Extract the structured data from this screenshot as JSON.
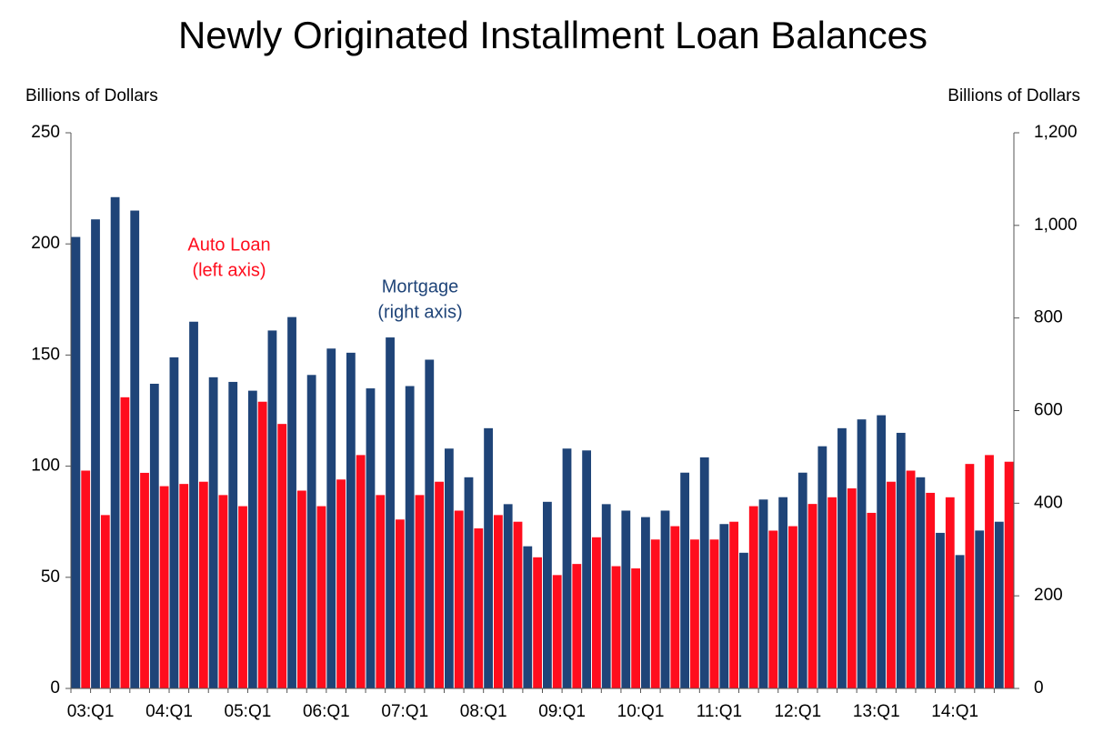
{
  "chart_data": {
    "type": "bar",
    "title": "Newly Originated Installment Loan Balances",
    "y_label": "Billions of Dollars",
    "y2_label": "Billions of Dollars",
    "categories": [
      "03:Q1",
      null,
      null,
      null,
      "04:Q1",
      null,
      null,
      null,
      "05:Q1",
      null,
      null,
      null,
      "06:Q1",
      null,
      null,
      null,
      "07:Q1",
      null,
      null,
      null,
      "08:Q1",
      null,
      null,
      null,
      "09:Q1",
      null,
      null,
      null,
      "10:Q1",
      null,
      null,
      null,
      "11:Q1",
      null,
      null,
      null,
      "12:Q1",
      null,
      null,
      null,
      "13:Q1",
      null,
      null,
      null,
      "14:Q1",
      null,
      null,
      null
    ],
    "series": [
      {
        "name": "Mortgage",
        "note": "(right axis)",
        "color": "#1f4478",
        "axis": "y2",
        "values": [
          975,
          1013,
          1061,
          1032,
          658,
          715,
          792,
          672,
          662,
          643,
          773,
          802,
          677,
          734,
          725,
          648,
          758,
          653,
          710,
          518,
          456,
          562,
          398,
          307,
          403,
          518,
          514,
          398,
          384,
          370,
          384,
          466,
          499,
          355,
          293,
          408,
          413,
          466,
          523,
          562,
          581,
          590,
          552,
          456,
          336,
          288,
          341,
          360
        ]
      },
      {
        "name": "Auto Loan",
        "note": "(left axis)",
        "color": "#ff0d1d",
        "axis": "y",
        "values": [
          98,
          78,
          131,
          97,
          91,
          92,
          93,
          87,
          82,
          129,
          119,
          89,
          82,
          94,
          105,
          87,
          76,
          87,
          93,
          80,
          72,
          78,
          75,
          59,
          51,
          56,
          68,
          55,
          54,
          67,
          73,
          67,
          67,
          75,
          82,
          71,
          73,
          83,
          86,
          90,
          79,
          93,
          98,
          88,
          86,
          101,
          105,
          102
        ]
      }
    ],
    "ylim": [
      0,
      250
    ],
    "yticks": [
      0,
      50,
      100,
      150,
      200,
      250
    ],
    "y2lim": [
      0,
      1200
    ],
    "y2ticks": [
      0,
      200,
      400,
      600,
      800,
      {
        "value": 1000,
        "label": "1,000"
      },
      {
        "value": 1200,
        "label": "1,200"
      }
    ]
  }
}
